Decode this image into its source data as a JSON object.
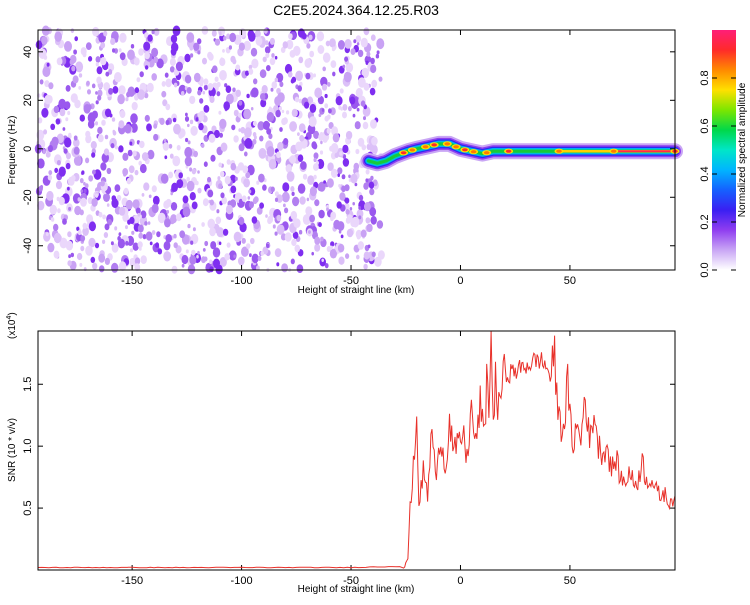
{
  "page": {
    "title": "C2E5.2024.364.12.25.R03"
  },
  "chart_data": [
    {
      "type": "heatmap",
      "xlabel": "Height of straight line (km)",
      "ylabel": "Frequency (Hz)",
      "xlim": [
        -193,
        98
      ],
      "ylim": [
        -50,
        49
      ],
      "xticks": [
        -150,
        -100,
        -50,
        0,
        50
      ],
      "yticks": [
        -40,
        -20,
        0,
        20,
        40
      ],
      "noise_region_x": [
        -193,
        -36
      ],
      "signal_trace": {
        "x": [
          -42,
          -38,
          -34,
          -30,
          -27,
          -24,
          -20,
          -15,
          -10,
          -5,
          0,
          5,
          10,
          15,
          20,
          30,
          40,
          60,
          80,
          98
        ],
        "y": [
          -5,
          -6,
          -5,
          -3,
          -2,
          -1,
          0,
          1,
          2,
          2,
          0,
          -1,
          -2,
          -1,
          -1,
          -1,
          -1,
          -1,
          -1,
          -1
        ],
        "peak_x": [
          -26,
          -22,
          -16,
          -12,
          -6,
          -2,
          2,
          6,
          12,
          22,
          45,
          70,
          98
        ]
      },
      "colorbar": {
        "label": "Normalized spectral amplitude",
        "ticks": [
          "0.0",
          "0.2",
          "0.4",
          "0.6",
          "0.8"
        ],
        "range": [
          0,
          1
        ],
        "colors": [
          "#ffffff",
          "#c9a6f5",
          "#8f3df0",
          "#3a1ff2",
          "#1560ff",
          "#00b5ff",
          "#00e6c8",
          "#00d84a",
          "#7de600",
          "#ffe000",
          "#ff8a00",
          "#ff2a2a",
          "#ff1e78"
        ]
      }
    },
    {
      "type": "line",
      "xlabel": "Height of straight line (km)",
      "ylabel": "SNR (10 * v/v)",
      "multiplier": "(x10",
      "multiplier_exp": "4",
      "multiplier_close": ")",
      "xlim": [
        -193,
        98
      ],
      "ylim": [
        0,
        1.93
      ],
      "xticks": [
        -150,
        -100,
        -50,
        0,
        50
      ],
      "yticks": [
        "0.5",
        "1.0",
        "1.5"
      ],
      "series": [
        {
          "color": "#e8312a",
          "x": [
            -193,
            -150,
            -100,
            -50,
            -26,
            -24,
            -23,
            -22,
            -21,
            -20,
            -19,
            -18,
            -17,
            -15,
            -13,
            -11,
            -9,
            -7,
            -5,
            -3,
            -1,
            1,
            3,
            5,
            7,
            9,
            11,
            12,
            13,
            14,
            15,
            16,
            17,
            19,
            21,
            24,
            27,
            30,
            33,
            36,
            38,
            40,
            41,
            43,
            45,
            47,
            49,
            51,
            53,
            55,
            57,
            59,
            61,
            63,
            65,
            67,
            69,
            71,
            73,
            75,
            77,
            79,
            81,
            83,
            85,
            87,
            89,
            91,
            93,
            95,
            98
          ],
          "y": [
            0.02,
            0.02,
            0.02,
            0.02,
            0.03,
            0.1,
            0.5,
            0.65,
            1.0,
            1.22,
            0.55,
            0.65,
            0.8,
            0.6,
            1.15,
            0.7,
            1.12,
            0.8,
            1.2,
            0.95,
            1.0,
            1.1,
            0.9,
            1.3,
            1.0,
            1.35,
            1.05,
            1.6,
            1.3,
            1.93,
            1.1,
            1.7,
            1.2,
            1.55,
            1.58,
            1.6,
            1.62,
            1.65,
            1.68,
            1.7,
            1.67,
            1.62,
            1.55,
            1.7,
            1.2,
            1.15,
            1.5,
            1.0,
            1.15,
            1.05,
            1.45,
            1.0,
            1.3,
            1.0,
            0.95,
            1.0,
            0.8,
            0.9,
            0.75,
            0.7,
            0.8,
            0.7,
            0.72,
            0.88,
            0.72,
            0.75,
            0.65,
            0.6,
            0.62,
            0.55,
            0.6
          ]
        }
      ]
    }
  ]
}
